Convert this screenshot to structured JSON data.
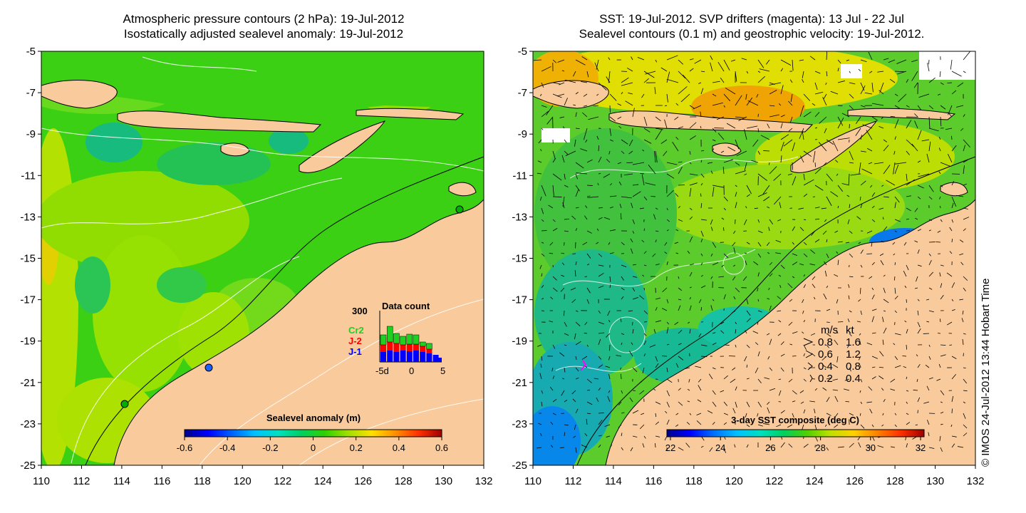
{
  "left_panel": {
    "title_lines": [
      "Atmospheric pressure contours (2 hPa): 19-Jul-2012",
      "Isostatically adjusted sealevel anomaly: 19-Jul-2012"
    ],
    "colorbar": {
      "label": "Sealevel anomaly (m)",
      "ticks": [
        "-0.6",
        "-0.4",
        "-0.2",
        "0",
        "0.2",
        "0.4",
        "0.6"
      ],
      "colors": [
        "#00008c",
        "#0000ff",
        "#0060ff",
        "#00c0ff",
        "#00e0c0",
        "#00d060",
        "#30d000",
        "#a0e000",
        "#ffe000",
        "#ff9000",
        "#ff3000",
        "#a00000"
      ]
    },
    "inset": {
      "title": "Data count",
      "ymax_label": "300",
      "x_ticks": [
        "-5d",
        "0",
        "5"
      ],
      "legend": [
        {
          "label": "Cr2",
          "color": "#20d020"
        },
        {
          "label": "J-2",
          "color": "#ff0000"
        },
        {
          "label": "J-1",
          "color": "#0000ff"
        }
      ]
    }
  },
  "right_panel": {
    "title_lines": [
      "SST: 19-Jul-2012. SVP drifters (magenta): 13 Jul - 22 Jul",
      "Sealevel contours (0.1 m) and geostrophic velocity: 19-Jul-2012."
    ],
    "colorbar": {
      "label": "3-day SST composite (deg C)",
      "ticks": [
        "22",
        "24",
        "26",
        "28",
        "30",
        "32"
      ],
      "colors": [
        "#00008c",
        "#0000ff",
        "#0070ff",
        "#00c0ff",
        "#00e0c0",
        "#00d060",
        "#50d000",
        "#c0e000",
        "#ffd000",
        "#ff8000",
        "#ff3000",
        "#a00000"
      ]
    },
    "velocity_key": {
      "header": [
        "m/s",
        "kt"
      ],
      "rows": [
        [
          "0.8",
          "1.6"
        ],
        [
          "0.6",
          "1.2"
        ],
        [
          "0.4",
          "0.8"
        ],
        [
          "0.2",
          "0.4"
        ]
      ]
    },
    "credit": "© IMOS 24-Jul-2012 13:44 Hobart Time"
  },
  "axes": {
    "x_ticks": [
      "110",
      "112",
      "114",
      "116",
      "118",
      "120",
      "122",
      "124",
      "126",
      "128",
      "130",
      "132"
    ],
    "y_ticks": [
      "-5",
      "-7",
      "-9",
      "-11",
      "-13",
      "-15",
      "-17",
      "-19",
      "-21",
      "-23",
      "-25"
    ]
  },
  "colors": {
    "land": "#f9cb9c",
    "sea_left": "#3cd014",
    "sea_right": "#5ccc2c"
  }
}
